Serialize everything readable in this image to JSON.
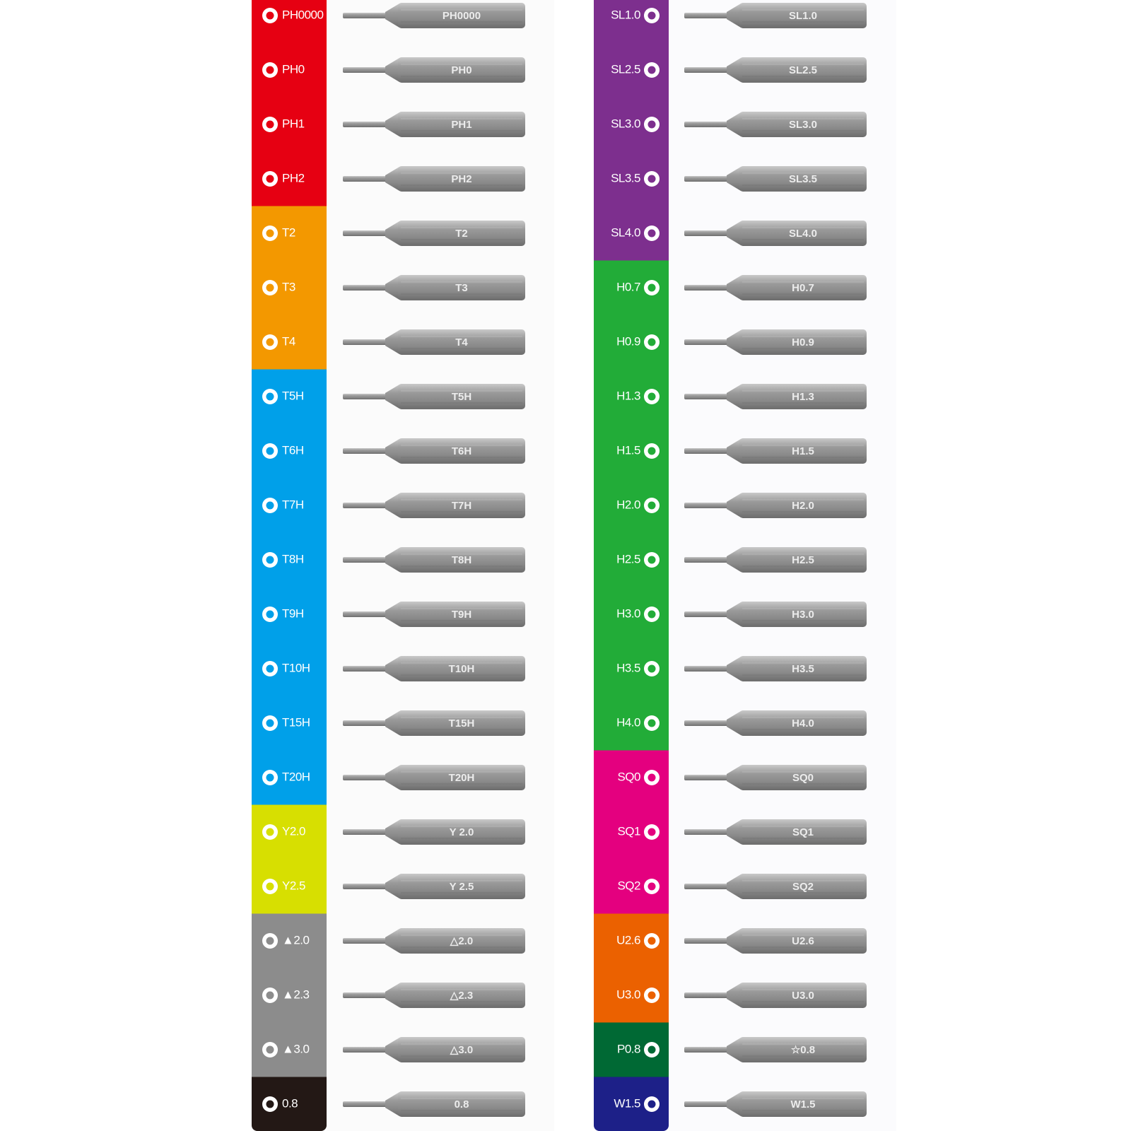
{
  "columns": [
    {
      "groups": [
        {
          "color": "#e60012",
          "items": [
            {
              "label": "PH0000",
              "bit_label": "PH0000"
            },
            {
              "label": "PH0",
              "bit_label": "PH0"
            },
            {
              "label": "PH1",
              "bit_label": "PH1"
            },
            {
              "label": "PH2",
              "bit_label": "PH2"
            }
          ]
        },
        {
          "color": "#f39800",
          "items": [
            {
              "label": "T2",
              "bit_label": "T2"
            },
            {
              "label": "T3",
              "bit_label": "T3"
            },
            {
              "label": "T4",
              "bit_label": "T4"
            }
          ]
        },
        {
          "color": "#00a0e9",
          "items": [
            {
              "label": "T5H",
              "bit_label": "T5H"
            },
            {
              "label": "T6H",
              "bit_label": "T6H"
            },
            {
              "label": "T7H",
              "bit_label": "T7H"
            },
            {
              "label": "T8H",
              "bit_label": "T8H"
            },
            {
              "label": "T9H",
              "bit_label": "T9H"
            },
            {
              "label": "T10H",
              "bit_label": "T10H"
            },
            {
              "label": "T15H",
              "bit_label": "T15H"
            },
            {
              "label": "T20H",
              "bit_label": "T20H"
            }
          ]
        },
        {
          "color": "#d7df01",
          "items": [
            {
              "label": "Y2.0",
              "bit_label": "Y 2.0"
            },
            {
              "label": "Y2.5",
              "bit_label": "Y 2.5"
            }
          ]
        },
        {
          "color": "#8c8c8c",
          "items": [
            {
              "label": "▲2.0",
              "bit_label": "△2.0"
            },
            {
              "label": "▲2.3",
              "bit_label": "△2.3"
            },
            {
              "label": "▲3.0",
              "bit_label": "△3.0"
            }
          ]
        },
        {
          "color": "#231815",
          "items": [
            {
              "label": "0.8",
              "bit_label": "0.8"
            }
          ]
        }
      ]
    },
    {
      "groups": [
        {
          "color": "#7d2f8e",
          "items": [
            {
              "label": "SL1.0",
              "bit_label": "SL1.0"
            },
            {
              "label": "SL2.5",
              "bit_label": "SL2.5"
            },
            {
              "label": "SL3.0",
              "bit_label": "SL3.0"
            },
            {
              "label": "SL3.5",
              "bit_label": "SL3.5"
            },
            {
              "label": "SL4.0",
              "bit_label": "SL4.0"
            }
          ]
        },
        {
          "color": "#22ac38",
          "items": [
            {
              "label": "H0.7",
              "bit_label": "H0.7"
            },
            {
              "label": "H0.9",
              "bit_label": "H0.9"
            },
            {
              "label": "H1.3",
              "bit_label": "H1.3"
            },
            {
              "label": "H1.5",
              "bit_label": "H1.5"
            },
            {
              "label": "H2.0",
              "bit_label": "H2.0"
            },
            {
              "label": "H2.5",
              "bit_label": "H2.5"
            },
            {
              "label": "H3.0",
              "bit_label": "H3.0"
            },
            {
              "label": "H3.5",
              "bit_label": "H3.5"
            },
            {
              "label": "H4.0",
              "bit_label": "H4.0"
            }
          ]
        },
        {
          "color": "#e4007f",
          "items": [
            {
              "label": "SQ0",
              "bit_label": "SQ0"
            },
            {
              "label": "SQ1",
              "bit_label": "SQ1"
            },
            {
              "label": "SQ2",
              "bit_label": "SQ2"
            }
          ]
        },
        {
          "color": "#eb6100",
          "items": [
            {
              "label": "U2.6",
              "bit_label": "U2.6"
            },
            {
              "label": "U3.0",
              "bit_label": "U3.0"
            }
          ]
        },
        {
          "color": "#006934",
          "items": [
            {
              "label": "P0.8",
              "bit_label": "☆0.8"
            }
          ]
        },
        {
          "color": "#1d2088",
          "items": [
            {
              "label": "W1.5",
              "bit_label": "W1.5"
            }
          ]
        }
      ]
    }
  ]
}
